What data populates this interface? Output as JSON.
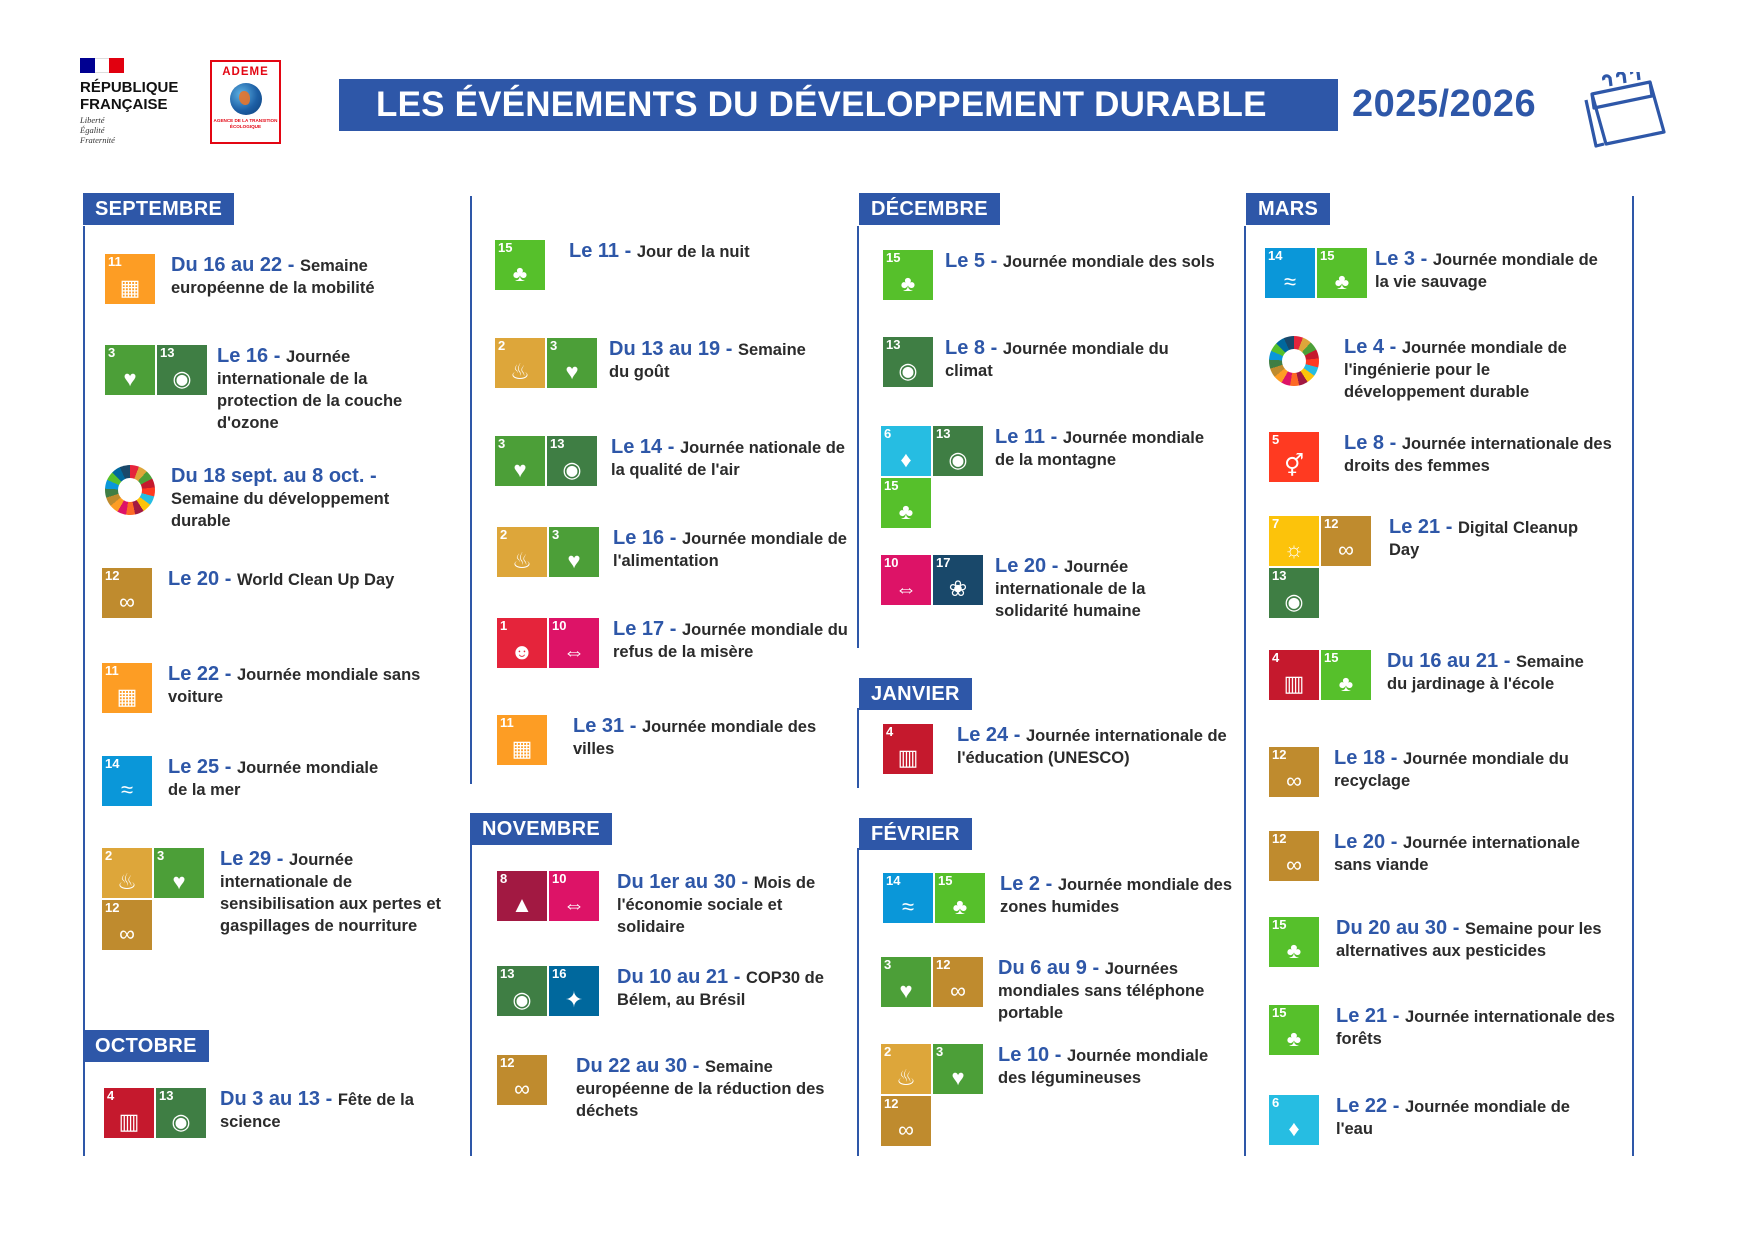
{
  "header": {
    "republique": "RÉPUBLIQUE FRANÇAISE",
    "motto": [
      "Liberté",
      "Égalité",
      "Fraternité"
    ],
    "ademe": "ADEME",
    "ademe_sub": "AGENCE DE LA TRANSITION ÉCOLOGIQUE",
    "title": "LES ÉVÉNEMENTS DU DÉVELOPPEMENT DURABLE",
    "year": "2025/2026",
    "flag_colors": [
      "#000091",
      "#ffffff",
      "#e1000f"
    ],
    "accent_color": "#2e57a8"
  },
  "sdg_colors": {
    "2": "#dda63a",
    "3": "#4c9f38",
    "4": "#c5192d",
    "5": "#ff3a21",
    "6": "#26bde2",
    "7": "#fcc30b",
    "8": "#a21942",
    "10": "#dd1367",
    "11": "#fd9d24",
    "12": "#bf8b2e",
    "13": "#3f7e44",
    "14": "#0a97d9",
    "15": "#56c02b",
    "16": "#00689d",
    "17": "#19486a"
  },
  "sdg_glyphs": {
    "2": "♨",
    "3": "♥",
    "4": "▥",
    "5": "⚥",
    "6": "♦",
    "7": "☼",
    "8": "▲",
    "10": "⇔",
    "11": "▦",
    "12": "∞",
    "13": "◉",
    "14": "≈",
    "15": "♣",
    "16": "✦",
    "17": "❀"
  },
  "months": {
    "septembre": "SEPTEMBRE",
    "octobre": "OCTOBRE",
    "novembre": "NOVEMBRE",
    "decembre": "DÉCEMBRE",
    "janvier": "JANVIER",
    "fevrier": "FÉVRIER",
    "mars": "MARS"
  },
  "events": {
    "sep_1": {
      "date": "Du 16 au 22",
      "text": "Semaine européenne de la mobilité",
      "goals": [
        "11"
      ]
    },
    "sep_2": {
      "date": "Le 16",
      "text": "Journée internationale de la protection de la couche d'ozone",
      "goals": [
        "3",
        "13"
      ]
    },
    "sep_3": {
      "date": "Du 18 sept. au 8 oct.",
      "text": "Semaine du développement durable",
      "goals": [
        "wheel"
      ]
    },
    "sep_4": {
      "date": "Le 20",
      "text": "World Clean Up Day",
      "goals": [
        "12"
      ]
    },
    "sep_5": {
      "date": "Le 22",
      "text": "Journée mondiale sans voiture",
      "goals": [
        "11"
      ]
    },
    "sep_6": {
      "date": "Le 25",
      "text": "Journée mondiale de la mer",
      "goals": [
        "14"
      ]
    },
    "sep_7": {
      "date": "Le 29",
      "text": "Journée internationale de sensibilisation aux pertes et gaspillages de nourriture",
      "goals": [
        "2",
        "3",
        "12"
      ]
    },
    "oct_1": {
      "date": "Du 3 au 13",
      "text": "Fête de la science",
      "goals": [
        "4",
        "13"
      ]
    },
    "oct_2": {
      "date": "Le 11",
      "text": "Jour de la nuit",
      "goals": [
        "15"
      ]
    },
    "oct_3": {
      "date": "Du 13 au 19",
      "text": "Semaine du goût",
      "goals": [
        "2",
        "3"
      ]
    },
    "oct_4": {
      "date": "Le 14",
      "text": "Journée nationale de la qualité de l'air",
      "goals": [
        "3",
        "13"
      ]
    },
    "oct_5": {
      "date": "Le 16",
      "text": "Journée mondiale de l'alimentation",
      "goals": [
        "2",
        "3"
      ]
    },
    "oct_6": {
      "date": "Le 17",
      "text": "Journée mondiale du refus de la misère",
      "goals": [
        "1",
        "10"
      ]
    },
    "oct_7": {
      "date": "Le 31",
      "text": "Journée mondiale des villes",
      "goals": [
        "11"
      ]
    },
    "nov_1": {
      "date": "Du 1er au 30",
      "text": "Mois de l'économie sociale et solidaire",
      "goals": [
        "8",
        "10"
      ]
    },
    "nov_2": {
      "date": "Du 10 au 21",
      "text": "COP30 de Bélem, au Brésil",
      "goals": [
        "13",
        "16"
      ]
    },
    "nov_3": {
      "date": "Du 22 au 30",
      "text": "Semaine européenne de la réduction des déchets",
      "goals": [
        "12"
      ]
    },
    "dec_1": {
      "date": "Le 5",
      "text": "Journée mondiale des sols",
      "goals": [
        "15"
      ]
    },
    "dec_2": {
      "date": "Le 8",
      "text": "Journée mondiale du climat",
      "goals": [
        "13"
      ]
    },
    "dec_3": {
      "date": "Le 11",
      "text": "Journée mondiale de la montagne",
      "goals": [
        "6",
        "13",
        "15"
      ]
    },
    "dec_4": {
      "date": "Le 20",
      "text": "Journée internationale de la solidarité humaine",
      "goals": [
        "10",
        "17"
      ]
    },
    "jan_1": {
      "date": "Le 24",
      "text": "Journée internationale de l'éducation (UNESCO)",
      "goals": [
        "4"
      ]
    },
    "feb_1": {
      "date": "Le 2",
      "text": "Journée mondiale des zones humides",
      "goals": [
        "14",
        "15"
      ]
    },
    "feb_2": {
      "date": "Du 6 au 9",
      "text": "Journées mondiales sans téléphone portable",
      "goals": [
        "3",
        "12"
      ]
    },
    "feb_3": {
      "date": "Le 10",
      "text": "Journée mondiale des légumineuses",
      "goals": [
        "2",
        "3",
        "12"
      ]
    },
    "mar_1": {
      "date": "Le 3",
      "text": "Journée mondiale de la vie sauvage",
      "goals": [
        "14",
        "15"
      ]
    },
    "mar_2": {
      "date": "Le 4",
      "text": "Journée mondiale de l'ingénierie pour le développement durable",
      "goals": [
        "wheel"
      ]
    },
    "mar_3": {
      "date": "Le 8",
      "text": "Journée internationale des droits des femmes",
      "goals": [
        "5"
      ]
    },
    "mar_4": {
      "date": "Le 21",
      "text": "Digital Cleanup Day",
      "goals": [
        "7",
        "12",
        "13"
      ]
    },
    "mar_5": {
      "date": "Du 16 au 21",
      "text": "Semaine du jardinage à l'école",
      "goals": [
        "4",
        "15"
      ]
    },
    "mar_6": {
      "date": "Le 18",
      "text": "Journée mondiale du recyclage",
      "goals": [
        "12"
      ]
    },
    "mar_7": {
      "date": "Le 20",
      "text": "Journée internationale sans viande",
      "goals": [
        "12"
      ]
    },
    "mar_8": {
      "date": "Du 20 au 30",
      "text": "Semaine pour les alternatives aux pesticides",
      "goals": [
        "15"
      ]
    },
    "mar_9": {
      "date": "Le 21",
      "text": "Journée internationale des forêts",
      "goals": [
        "15"
      ]
    },
    "mar_10": {
      "date": "Le 22",
      "text": "Journée mondiale de l'eau",
      "goals": [
        "6"
      ]
    }
  }
}
